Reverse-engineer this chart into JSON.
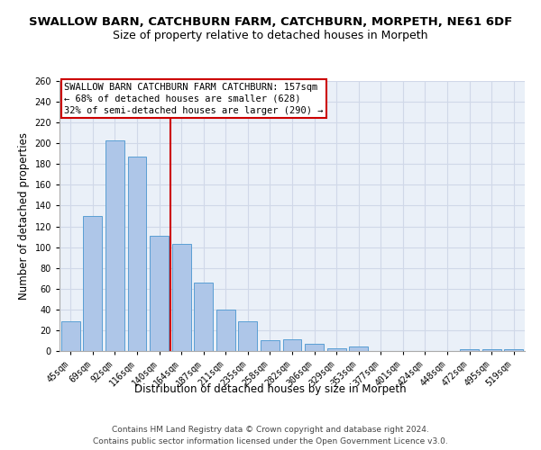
{
  "title": "SWALLOW BARN, CATCHBURN FARM, CATCHBURN, MORPETH, NE61 6DF",
  "subtitle": "Size of property relative to detached houses in Morpeth",
  "xlabel": "Distribution of detached houses by size in Morpeth",
  "ylabel": "Number of detached properties",
  "categories": [
    "45sqm",
    "69sqm",
    "92sqm",
    "116sqm",
    "140sqm",
    "164sqm",
    "187sqm",
    "211sqm",
    "235sqm",
    "258sqm",
    "282sqm",
    "306sqm",
    "329sqm",
    "353sqm",
    "377sqm",
    "401sqm",
    "424sqm",
    "448sqm",
    "472sqm",
    "495sqm",
    "519sqm"
  ],
  "values": [
    29,
    130,
    203,
    187,
    111,
    103,
    66,
    40,
    29,
    10,
    11,
    7,
    3,
    4,
    0,
    0,
    0,
    0,
    2,
    2,
    2
  ],
  "bar_color": "#aec6e8",
  "bar_edge_color": "#5a9fd4",
  "annotation_label": "SWALLOW BARN CATCHBURN FARM CATCHBURN: 157sqm",
  "annotation_line1": "← 68% of detached houses are smaller (628)",
  "annotation_line2": "32% of semi-detached houses are larger (290) →",
  "annotation_box_color": "#ffffff",
  "annotation_box_edge_color": "#cc0000",
  "grid_color": "#d0d8e8",
  "background_color": "#eaf0f8",
  "ylim": [
    0,
    260
  ],
  "yticks": [
    0,
    20,
    40,
    60,
    80,
    100,
    120,
    140,
    160,
    180,
    200,
    220,
    240,
    260
  ],
  "footer_line1": "Contains HM Land Registry data © Crown copyright and database right 2024.",
  "footer_line2": "Contains public sector information licensed under the Open Government Licence v3.0.",
  "title_fontsize": 9.5,
  "subtitle_fontsize": 9,
  "xlabel_fontsize": 8.5,
  "ylabel_fontsize": 8.5,
  "tick_fontsize": 7,
  "footer_fontsize": 6.5,
  "annot_fontsize": 7.5
}
